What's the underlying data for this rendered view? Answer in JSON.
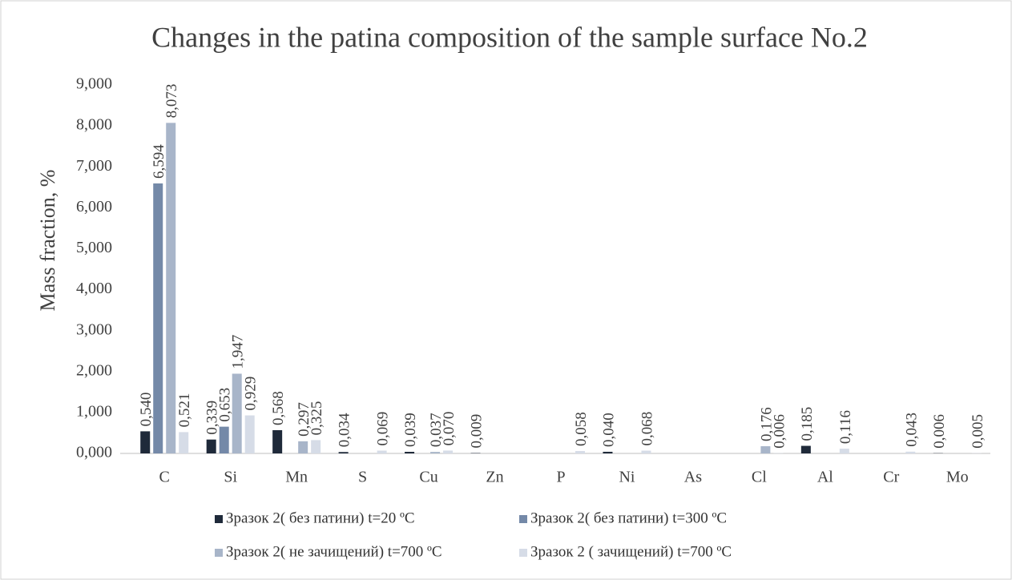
{
  "chart_data": {
    "type": "bar",
    "title": "Changes in the patina composition of the sample surface No.2",
    "y_label": "Mass fraction, %",
    "categories": [
      "C",
      "Si",
      "Mn",
      "S",
      "Cu",
      "Zn",
      "P",
      "Ni",
      "As",
      "Cl",
      "Al",
      "Cr",
      "Mo"
    ],
    "series": [
      {
        "name": "Зразок 2( без патини) t=20 ºС",
        "color": "#1f2a3a",
        "values": [
          0.54,
          0.339,
          0.568,
          0.034,
          0.039,
          0.009,
          null,
          0.04,
          null,
          null,
          0.185,
          null,
          0.006
        ],
        "value_labels": [
          "0,540",
          "0,339",
          "0,568",
          "0,034",
          "0,039",
          "0,009",
          null,
          "0,040",
          null,
          null,
          "0,185",
          null,
          "0,006"
        ]
      },
      {
        "name": "Зразок 2( без патини) t=300 ºС",
        "color": "#7489a8",
        "values": [
          6.594,
          0.653,
          null,
          null,
          null,
          null,
          null,
          null,
          null,
          null,
          null,
          null,
          null
        ],
        "value_labels": [
          "6,594",
          "0,653",
          null,
          null,
          null,
          null,
          null,
          null,
          null,
          null,
          null,
          null,
          null
        ]
      },
      {
        "name": "Зразок 2( не зачищений) t=700 ºС",
        "color": "#a8b5c9",
        "values": [
          8.073,
          1.947,
          0.297,
          null,
          0.037,
          null,
          null,
          null,
          null,
          0.176,
          null,
          null,
          null
        ],
        "value_labels": [
          "8,073",
          "1,947",
          "0,297",
          null,
          "0,037",
          null,
          null,
          null,
          null,
          "0,176",
          null,
          null,
          null
        ]
      },
      {
        "name": "Зразок 2 ( зачищений) t=700 ºС",
        "color": "#d6dce7",
        "values": [
          0.521,
          0.929,
          0.325,
          0.069,
          0.07,
          null,
          0.058,
          0.068,
          null,
          0.006,
          0.116,
          0.043,
          0.005
        ],
        "value_labels": [
          "0,521",
          "0,929",
          "0,325",
          "0,069",
          "0,070",
          null,
          "0,058",
          "0,068",
          null,
          "0,006",
          "0,116",
          "0,043",
          "0,005"
        ]
      }
    ],
    "ylim": [
      0,
      9
    ],
    "yticks": [
      {
        "value": 0,
        "label": "0,000"
      },
      {
        "value": 1,
        "label": "1,000"
      },
      {
        "value": 2,
        "label": "2,000"
      },
      {
        "value": 3,
        "label": "3,000"
      },
      {
        "value": 4,
        "label": "4,000"
      },
      {
        "value": 5,
        "label": "5,000"
      },
      {
        "value": 6,
        "label": "6,000"
      },
      {
        "value": 7,
        "label": "7,000"
      },
      {
        "value": 8,
        "label": "8,000"
      },
      {
        "value": 9,
        "label": "9,000"
      }
    ],
    "legend": "bottom"
  }
}
